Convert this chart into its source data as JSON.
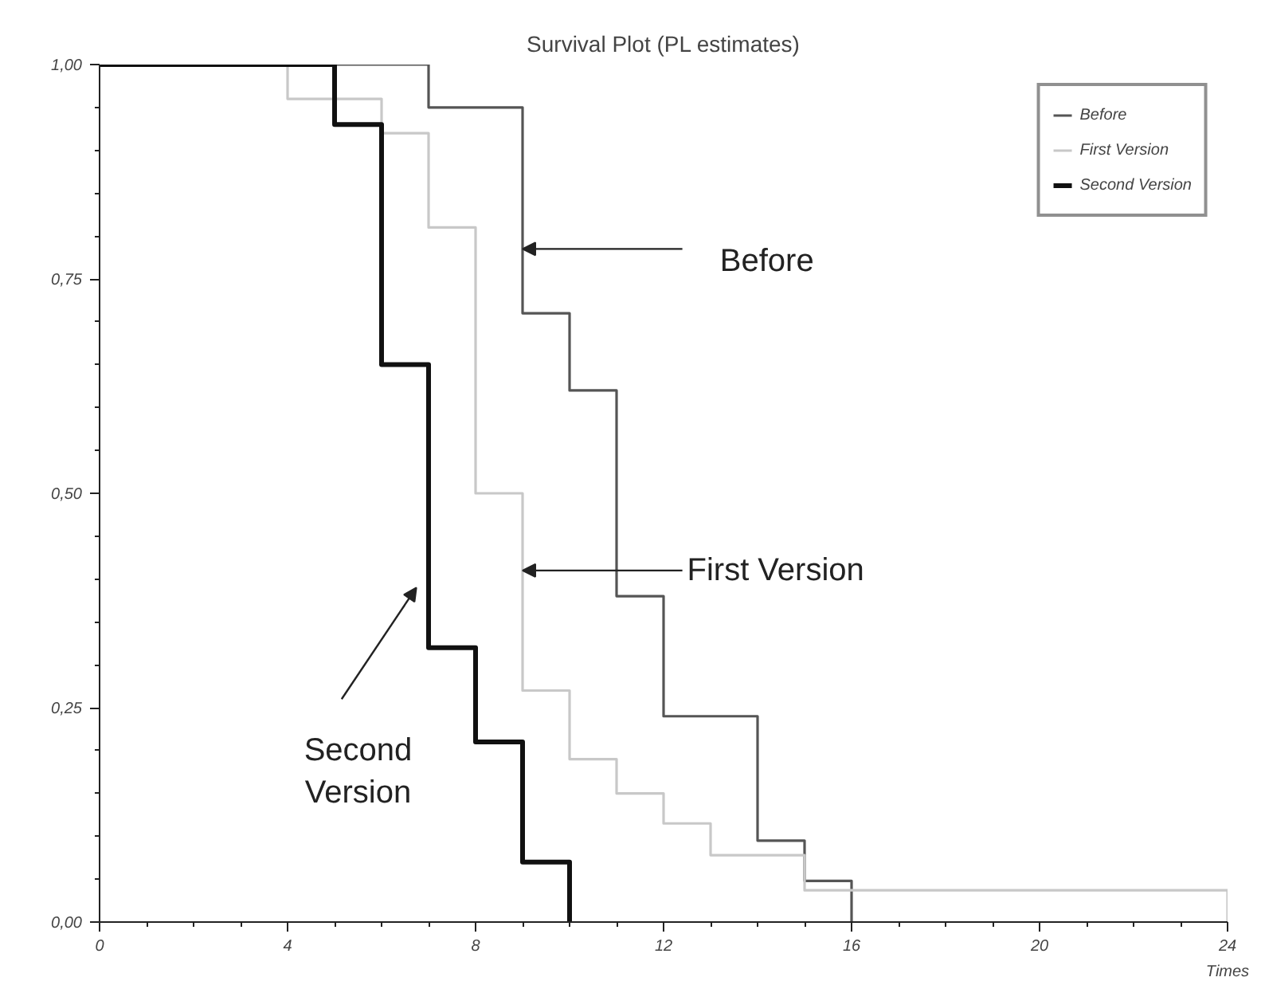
{
  "chart_data": {
    "type": "step",
    "title": "Survival Plot (PL estimates)",
    "xlabel": "Times",
    "xlim": [
      0,
      24
    ],
    "xticks": [
      0,
      4,
      8,
      12,
      16,
      20,
      24
    ],
    "ylim": [
      0,
      1
    ],
    "yticks": [
      {
        "value": 0,
        "label": "0,00"
      },
      {
        "value": 0.25,
        "label": "0,25"
      },
      {
        "value": 0.5,
        "label": "0,50"
      },
      {
        "value": 0.75,
        "label": "0,75"
      },
      {
        "value": 1,
        "label": "1,00"
      }
    ],
    "grid": false,
    "legend": "top right",
    "line_style": "solid",
    "marker": "none",
    "series": [
      {
        "name": "Before",
        "color": "#555555",
        "x": [
          0,
          7,
          9,
          10,
          11,
          12,
          14,
          15,
          16
        ],
        "values": [
          1,
          0.95,
          0.71,
          0.62,
          0.38,
          0.24,
          0.095,
          0.048,
          0
        ]
      },
      {
        "name": "First Version",
        "color": "#c8c8c8",
        "x": [
          0,
          4,
          6,
          7,
          8,
          9,
          10,
          11,
          12,
          13,
          15,
          24
        ],
        "values": [
          1,
          0.96,
          0.92,
          0.81,
          0.5,
          0.27,
          0.19,
          0.15,
          0.115,
          0.078,
          0.037,
          0
        ]
      },
      {
        "name": "Second Version",
        "color": "#111111",
        "x": [
          0,
          5,
          6,
          7,
          8,
          9,
          10
        ],
        "values": [
          1,
          0.93,
          0.65,
          0.32,
          0.21,
          0.07,
          0
        ]
      }
    ],
    "annotations": [
      {
        "text": "Before",
        "x": 9,
        "y": 0.785
      },
      {
        "text": "First Version",
        "x": 9,
        "y": 0.41
      },
      "Second Version"
    ]
  }
}
